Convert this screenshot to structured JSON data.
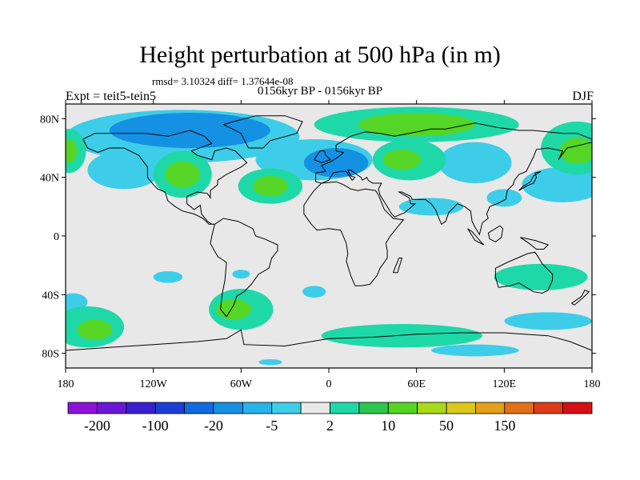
{
  "title": "Height perturbation at 500 hPa (in m)",
  "stats": "rmsd= 3.10324 diff= 1.37644e-08",
  "period": "0156kyr BP - 0156kyr BP",
  "experiment": "Expt = teit5-tein5",
  "season": "DJF",
  "map": {
    "lon_range": [
      -180,
      180
    ],
    "lat_range": [
      -90,
      90
    ],
    "lon_ticks": [
      {
        "value": -180,
        "label": "180"
      },
      {
        "value": -120,
        "label": "120W"
      },
      {
        "value": -60,
        "label": "60W"
      },
      {
        "value": 0,
        "label": "0"
      },
      {
        "value": 60,
        "label": "60E"
      },
      {
        "value": 120,
        "label": "120E"
      },
      {
        "value": 180,
        "label": "180"
      }
    ],
    "lat_ticks": [
      {
        "value": 80,
        "label": "80N"
      },
      {
        "value": 40,
        "label": "40N"
      },
      {
        "value": 0,
        "label": "0"
      },
      {
        "value": -40,
        "label": "40S"
      },
      {
        "value": -80,
        "label": "80S"
      }
    ],
    "background_color": "#e8e8e8",
    "regions": [
      {
        "level": "-5",
        "lon": -100,
        "lat": 68,
        "rlon": 80,
        "rlat": 18
      },
      {
        "level": "-20",
        "lon": -95,
        "lat": 72,
        "rlon": 55,
        "rlat": 12
      },
      {
        "level": "-5",
        "lon": -10,
        "lat": 52,
        "rlon": 40,
        "rlat": 14
      },
      {
        "level": "-20",
        "lon": 5,
        "lat": 50,
        "rlon": 22,
        "rlat": 10
      },
      {
        "level": "-5",
        "lon": -140,
        "lat": 45,
        "rlon": 25,
        "rlat": 13
      },
      {
        "level": "-5",
        "lon": 100,
        "lat": 50,
        "rlon": 25,
        "rlat": 14
      },
      {
        "level": "-5",
        "lon": 160,
        "lat": 35,
        "rlon": 28,
        "rlat": 12
      },
      {
        "level": "-5",
        "lon": 70,
        "lat": 20,
        "rlon": 22,
        "rlat": 6
      },
      {
        "level": "-5",
        "lon": 120,
        "lat": 26,
        "rlon": 12,
        "rlat": 6
      },
      {
        "level": "2",
        "lon": 60,
        "lat": 76,
        "rlon": 70,
        "rlat": 12
      },
      {
        "level": "10",
        "lon": 60,
        "lat": 76,
        "rlon": 40,
        "rlat": 8
      },
      {
        "level": "2",
        "lon": 55,
        "lat": 52,
        "rlon": 25,
        "rlat": 14
      },
      {
        "level": "10",
        "lon": 50,
        "lat": 52,
        "rlon": 13,
        "rlat": 7
      },
      {
        "level": "2",
        "lon": -100,
        "lat": 42,
        "rlon": 20,
        "rlat": 16
      },
      {
        "level": "10",
        "lon": -100,
        "lat": 42,
        "rlon": 12,
        "rlat": 9
      },
      {
        "level": "2",
        "lon": -40,
        "lat": 34,
        "rlon": 22,
        "rlat": 12
      },
      {
        "level": "10",
        "lon": -40,
        "lat": 34,
        "rlon": 12,
        "rlat": 7
      },
      {
        "level": "2",
        "lon": 170,
        "lat": 60,
        "rlon": 25,
        "rlat": 18
      },
      {
        "level": "10",
        "lon": 170,
        "lat": 58,
        "rlon": 12,
        "rlat": 9
      },
      {
        "level": "2",
        "lon": -178,
        "lat": 58,
        "rlon": 12,
        "rlat": 15
      },
      {
        "level": "10",
        "lon": -178,
        "lat": 58,
        "rlon": 6,
        "rlat": 8
      },
      {
        "level": "-5",
        "lon": -110,
        "lat": -28,
        "rlon": 10,
        "rlat": 4
      },
      {
        "level": "-5",
        "lon": -60,
        "lat": -26,
        "rlon": 6,
        "rlat": 3
      },
      {
        "level": "-5",
        "lon": -10,
        "lat": -38,
        "rlon": 8,
        "rlat": 4
      },
      {
        "level": "-5",
        "lon": -175,
        "lat": -45,
        "rlon": 10,
        "rlat": 6
      },
      {
        "level": "-5",
        "lon": 150,
        "lat": -58,
        "rlon": 30,
        "rlat": 6
      },
      {
        "level": "-5",
        "lon": 100,
        "lat": -78,
        "rlon": 30,
        "rlat": 4
      },
      {
        "level": "-5",
        "lon": -40,
        "lat": -86,
        "rlon": 8,
        "rlat": 2
      },
      {
        "level": "2",
        "lon": 145,
        "lat": -28,
        "rlon": 32,
        "rlat": 9
      },
      {
        "level": "2",
        "lon": -165,
        "lat": -62,
        "rlon": 25,
        "rlat": 14
      },
      {
        "level": "10",
        "lon": -160,
        "lat": -64,
        "rlon": 12,
        "rlat": 7
      },
      {
        "level": "2",
        "lon": -60,
        "lat": -50,
        "rlon": 22,
        "rlat": 14
      },
      {
        "level": "10",
        "lon": -65,
        "lat": -50,
        "rlon": 12,
        "rlat": 7
      },
      {
        "level": "2",
        "lon": 50,
        "lat": -68,
        "rlon": 55,
        "rlat": 8
      }
    ]
  },
  "colorbar": {
    "colors": [
      "#8c12d8",
      "#6a18d6",
      "#3a20d0",
      "#1a3fd8",
      "#0f6bdf",
      "#1591e3",
      "#27b4ea",
      "#3ecde8",
      "#e8e8e8",
      "#1fd8a8",
      "#2dc64e",
      "#55d525",
      "#a9d91a",
      "#dcc71a",
      "#e3a019",
      "#e27018",
      "#de3a16",
      "#d60e16"
    ],
    "labels": [
      {
        "boundary": 1,
        "text": "-200"
      },
      {
        "boundary": 3,
        "text": "-100"
      },
      {
        "boundary": 5,
        "text": "-20"
      },
      {
        "boundary": 7,
        "text": "-5"
      },
      {
        "boundary": 9,
        "text": "2"
      },
      {
        "boundary": 11,
        "text": "10"
      },
      {
        "boundary": 13,
        "text": "50"
      },
      {
        "boundary": 15,
        "text": "150"
      }
    ]
  },
  "level_colors": {
    "-20": "#1591e3",
    "-5": "#3ecde8",
    "2": "#1fd8a8",
    "10": "#55d525"
  }
}
